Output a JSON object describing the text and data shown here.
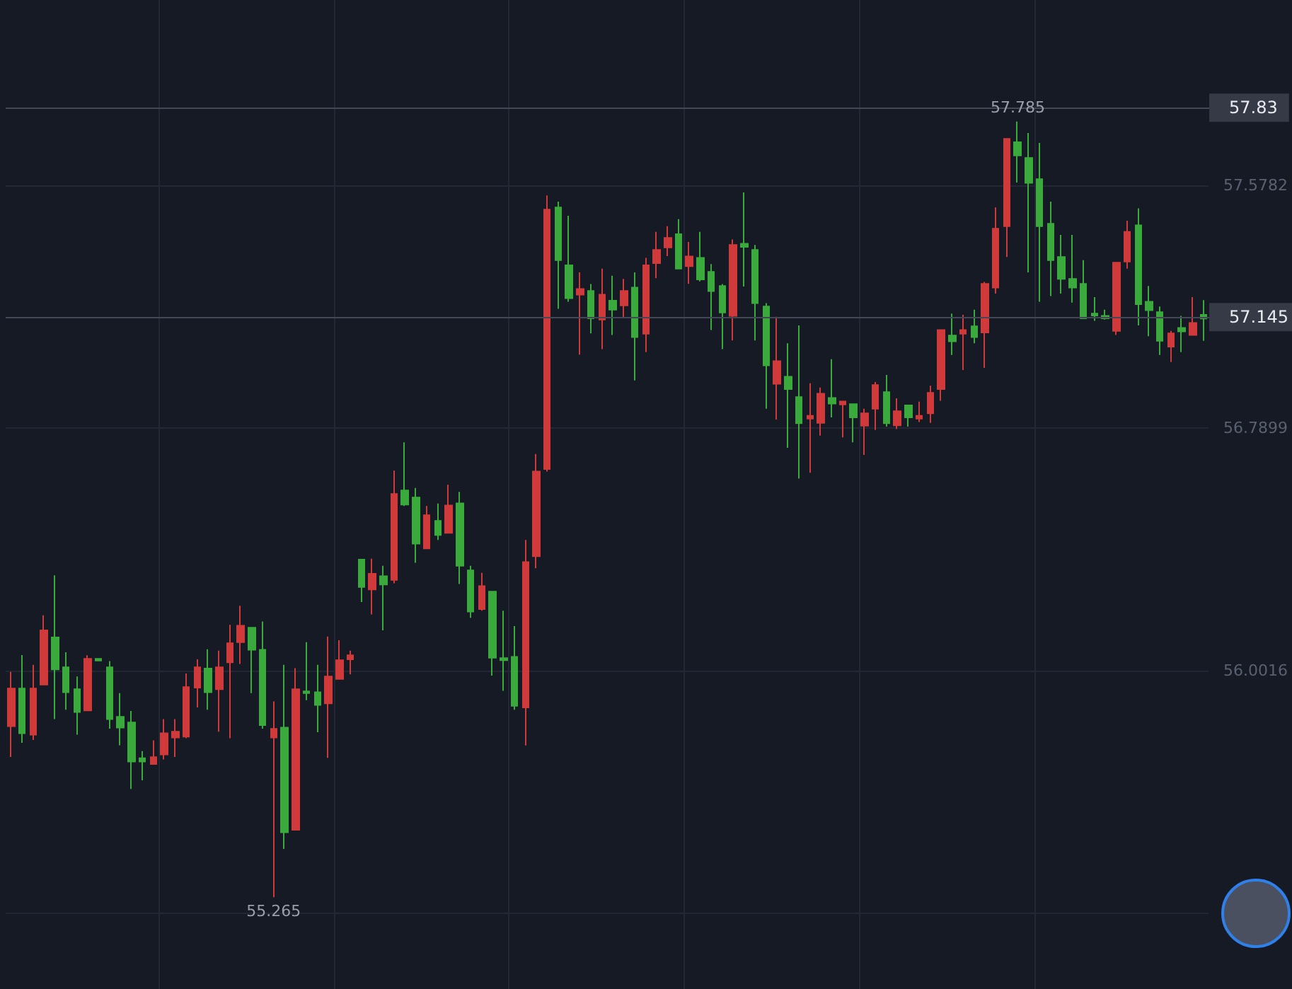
{
  "chart_data": {
    "type": "candlestick",
    "categories": [
      null,
      null,
      null,
      null,
      null,
      null,
      null,
      null,
      null,
      null,
      null,
      null,
      null,
      null,
      null,
      null,
      null,
      null,
      null,
      null,
      null,
      null,
      null,
      null,
      null,
      null,
      null,
      null,
      null,
      null,
      null,
      null,
      null,
      null,
      null,
      null,
      null,
      null,
      null,
      null,
      null,
      null,
      null,
      null,
      null,
      null,
      null,
      null,
      null,
      null,
      null,
      null,
      null,
      null,
      null,
      null,
      null,
      null,
      null,
      null,
      null,
      null,
      null,
      null,
      null,
      null,
      null,
      null,
      null,
      null,
      null,
      null,
      null,
      null,
      null,
      null,
      null,
      null,
      null,
      null,
      null,
      null,
      null,
      null,
      null,
      null,
      null,
      null,
      null,
      null,
      null,
      null,
      null,
      null,
      null,
      null,
      null,
      null,
      null,
      null,
      null,
      null,
      null,
      null,
      null,
      null,
      null,
      null,
      null,
      null
    ],
    "ohlc": [
      [
        55.821,
        55.997,
        55.721,
        55.943
      ],
      [
        55.943,
        56.052,
        55.767,
        55.798
      ],
      [
        55.793,
        56.02,
        55.776,
        55.943
      ],
      [
        55.956,
        56.181,
        55.956,
        56.132
      ],
      [
        56.109,
        56.311,
        55.844,
        56.005
      ],
      [
        56.012,
        56.061,
        55.874,
        55.931
      ],
      [
        55.941,
        55.982,
        55.793,
        55.867
      ],
      [
        55.872,
        56.051,
        55.872,
        56.04
      ],
      [
        56.04,
        56.04,
        56.034,
        56.034
      ],
      [
        56.012,
        56.032,
        55.813,
        55.844
      ],
      [
        55.851,
        55.928,
        55.759,
        55.816
      ],
      [
        55.833,
        55.87,
        55.617,
        55.706
      ],
      [
        55.717,
        55.74,
        55.645,
        55.706
      ],
      [
        55.698,
        55.775,
        55.698,
        55.72
      ],
      [
        55.729,
        55.844,
        55.713,
        55.798
      ],
      [
        55.784,
        55.844,
        55.721,
        55.803
      ],
      [
        55.787,
        55.992,
        55.782,
        55.948
      ],
      [
        55.946,
        56.038,
        55.882,
        56.012
      ],
      [
        56.008,
        56.071,
        55.874,
        55.931
      ],
      [
        55.941,
        56.066,
        55.803,
        56.012
      ],
      [
        56.028,
        56.15,
        55.782,
        56.09
      ],
      [
        56.094,
        56.212,
        56.023,
        56.147
      ],
      [
        56.141,
        56.141,
        55.928,
        56.069
      ],
      [
        56.069,
        56.161,
        55.813,
        55.824
      ],
      [
        55.784,
        55.901,
        55.265,
        55.812
      ],
      [
        55.816,
        56.02,
        55.422,
        55.476
      ],
      [
        55.484,
        56.009,
        55.484,
        55.941
      ],
      [
        55.934,
        56.094,
        55.905,
        55.928
      ],
      [
        55.931,
        56.02,
        55.801,
        55.89
      ],
      [
        55.895,
        56.112,
        55.718,
        55.982
      ],
      [
        55.974,
        56.1,
        55.974,
        56.035
      ],
      [
        56.038,
        56.066,
        55.989,
        56.051
      ],
      [
        56.362,
        56.362,
        56.224,
        56.273
      ],
      [
        56.265,
        56.365,
        56.184,
        56.316
      ],
      [
        56.308,
        56.342,
        56.132,
        56.281
      ],
      [
        56.296,
        56.651,
        56.285,
        56.575
      ],
      [
        56.587,
        56.743,
        56.536,
        56.541
      ],
      [
        56.564,
        56.595,
        56.352,
        56.414
      ],
      [
        56.398,
        56.536,
        56.398,
        56.506
      ],
      [
        56.488,
        56.544,
        56.426,
        56.442
      ],
      [
        56.449,
        56.605,
        56.449,
        56.538
      ],
      [
        56.545,
        56.582,
        56.283,
        56.342
      ],
      [
        56.327,
        56.342,
        56.173,
        56.193
      ],
      [
        56.201,
        56.319,
        56.196,
        56.276
      ],
      [
        56.258,
        56.258,
        55.985,
        56.043
      ],
      [
        56.042,
        56.196,
        55.936,
        56.035
      ],
      [
        56.046,
        56.146,
        55.874,
        55.887
      ],
      [
        55.882,
        56.426,
        55.758,
        56.354
      ],
      [
        56.373,
        56.705,
        56.334,
        56.648
      ],
      [
        56.656,
        57.545,
        56.648,
        57.499
      ],
      [
        57.506,
        57.525,
        57.177,
        57.335
      ],
      [
        57.318,
        57.479,
        57.2,
        57.211
      ],
      [
        57.223,
        57.295,
        57.028,
        57.241
      ],
      [
        57.235,
        57.257,
        57.097,
        57.146
      ],
      [
        57.142,
        57.307,
        57.046,
        57.223
      ],
      [
        57.203,
        57.284,
        57.092,
        57.174
      ],
      [
        57.188,
        57.274,
        57.146,
        57.235
      ],
      [
        57.246,
        57.295,
        56.944,
        57.085
      ],
      [
        57.096,
        57.342,
        57.036,
        57.318
      ],
      [
        57.325,
        57.427,
        57.276,
        57.368
      ],
      [
        57.376,
        57.445,
        57.348,
        57.407
      ],
      [
        57.419,
        57.468,
        57.307,
        57.307
      ],
      [
        57.315,
        57.394,
        57.258,
        57.347
      ],
      [
        57.342,
        57.427,
        57.266,
        57.272
      ],
      [
        57.297,
        57.322,
        57.108,
        57.234
      ],
      [
        57.251,
        57.257,
        57.046,
        57.165
      ],
      [
        57.154,
        57.402,
        57.074,
        57.384
      ],
      [
        57.388,
        57.555,
        57.249,
        57.378
      ],
      [
        57.368,
        57.384,
        57.074,
        57.195
      ],
      [
        57.184,
        57.195,
        56.852,
        56.993
      ],
      [
        56.933,
        57.151,
        56.817,
        57.007
      ],
      [
        56.956,
        57.065,
        56.725,
        56.916
      ],
      [
        56.89,
        57.123,
        56.625,
        56.805
      ],
      [
        56.82,
        56.935,
        56.644,
        56.829
      ],
      [
        56.806,
        56.921,
        56.765,
        56.901
      ],
      [
        56.887,
        57.013,
        56.824,
        56.869
      ],
      [
        56.866,
        56.878,
        56.759,
        56.876
      ],
      [
        56.867,
        56.867,
        56.743,
        56.824
      ],
      [
        56.797,
        56.852,
        56.702,
        56.837
      ],
      [
        56.852,
        56.939,
        56.783,
        56.929
      ],
      [
        56.906,
        56.962,
        56.794,
        56.805
      ],
      [
        56.798,
        56.886,
        56.786,
        56.844
      ],
      [
        56.863,
        56.863,
        56.794,
        56.824
      ],
      [
        56.82,
        56.875,
        56.809,
        56.829
      ],
      [
        56.837,
        56.927,
        56.806,
        56.904
      ],
      [
        56.916,
        57.108,
        56.878,
        57.108
      ],
      [
        57.09,
        57.161,
        57.027,
        57.071
      ],
      [
        57.096,
        57.157,
        56.978,
        57.108
      ],
      [
        57.12,
        57.174,
        57.065,
        57.085
      ],
      [
        57.1,
        57.264,
        56.985,
        57.258
      ],
      [
        57.246,
        57.506,
        57.226,
        57.437
      ],
      [
        57.445,
        57.729,
        57.345,
        57.729
      ],
      [
        57.718,
        57.785,
        57.587,
        57.675
      ],
      [
        57.667,
        57.748,
        57.295,
        57.586
      ],
      [
        57.598,
        57.716,
        57.2,
        57.445
      ],
      [
        57.453,
        57.525,
        57.218,
        57.335
      ],
      [
        57.345,
        57.417,
        57.226,
        57.274
      ],
      [
        57.274,
        57.417,
        57.197,
        57.246
      ],
      [
        57.258,
        57.335,
        57.146,
        57.146
      ],
      [
        57.161,
        57.215,
        57.138,
        57.155
      ],
      [
        57.154,
        57.174,
        57.142,
        57.146
      ],
      [
        57.105,
        57.327,
        57.092,
        57.327
      ],
      [
        57.33,
        57.463,
        57.307,
        57.427
      ],
      [
        57.448,
        57.503,
        57.123,
        57.192
      ],
      [
        57.2,
        57.251,
        57.088,
        57.172
      ],
      [
        57.166,
        57.184,
        57.027,
        57.073
      ],
      [
        57.054,
        57.105,
        57.004,
        57.097
      ],
      [
        57.115,
        57.154,
        57.036,
        57.103
      ],
      [
        57.092,
        57.215,
        57.092,
        57.131
      ],
      [
        57.157,
        57.205,
        57.073,
        57.145
      ]
    ],
    "colors": [
      "#d13a3a",
      "#3aaa3c",
      "#d13a3a",
      "#d13a3a",
      "#3aaa3c",
      "#3aaa3c",
      "#3aaa3c",
      "#d13a3a",
      "#3aaa3c",
      "#3aaa3c",
      "#3aaa3c",
      "#3aaa3c",
      "#3aaa3c",
      "#d13a3a",
      "#d13a3a",
      "#d13a3a",
      "#d13a3a",
      "#d13a3a",
      "#3aaa3c",
      "#d13a3a",
      "#d13a3a",
      "#d13a3a",
      "#3aaa3c",
      "#3aaa3c",
      "#d13a3a",
      "#3aaa3c",
      "#d13a3a",
      "#3aaa3c",
      "#3aaa3c",
      "#d13a3a",
      "#d13a3a",
      "#d13a3a",
      "#3aaa3c",
      "#d13a3a",
      "#3aaa3c",
      "#d13a3a",
      "#3aaa3c",
      "#3aaa3c",
      "#d13a3a",
      "#3aaa3c",
      "#d13a3a",
      "#3aaa3c",
      "#3aaa3c",
      "#d13a3a",
      "#3aaa3c",
      "#3aaa3c",
      "#3aaa3c",
      "#d13a3a",
      "#d13a3a",
      "#d13a3a",
      "#3aaa3c",
      "#3aaa3c",
      "#d13a3a",
      "#3aaa3c",
      "#d13a3a",
      "#3aaa3c",
      "#d13a3a",
      "#3aaa3c",
      "#d13a3a",
      "#d13a3a",
      "#d13a3a",
      "#3aaa3c",
      "#d13a3a",
      "#3aaa3c",
      "#3aaa3c",
      "#3aaa3c",
      "#d13a3a",
      "#3aaa3c",
      "#3aaa3c",
      "#3aaa3c",
      "#d13a3a",
      "#3aaa3c",
      "#3aaa3c",
      "#d13a3a",
      "#d13a3a",
      "#3aaa3c",
      "#d13a3a",
      "#3aaa3c",
      "#d13a3a",
      "#d13a3a",
      "#3aaa3c",
      "#d13a3a",
      "#3aaa3c",
      "#d13a3a",
      "#d13a3a",
      "#d13a3a",
      "#3aaa3c",
      "#d13a3a",
      "#3aaa3c",
      "#d13a3a",
      "#d13a3a",
      "#d13a3a",
      "#3aaa3c",
      "#3aaa3c",
      "#3aaa3c",
      "#3aaa3c",
      "#3aaa3c",
      "#3aaa3c",
      "#3aaa3c",
      "#3aaa3c",
      "#3aaa3c",
      "#d13a3a",
      "#d13a3a",
      "#3aaa3c",
      "#3aaa3c",
      "#3aaa3c",
      "#d13a3a",
      "#3aaa3c",
      "#d13a3a",
      "#3aaa3c"
    ],
    "ylim": [
      54.967,
      58.18
    ],
    "yticks": [
      {
        "value": 55.2133,
        "label": null
      },
      56.0016,
      56.7899,
      57.5782
    ],
    "tick_labels": "y",
    "grid": true,
    "ref_lines": [
      {
        "axis": "y",
        "value": 57.83,
        "label": "57.83",
        "color": "#434756"
      },
      {
        "axis": "y",
        "value": 57.145,
        "label": "57.145",
        "color": "#434756"
      }
    ],
    "annotations": [
      {
        "text": "57.785",
        "y": 57.785
      },
      {
        "text": "55.265",
        "y": 55.265
      }
    ]
  }
}
